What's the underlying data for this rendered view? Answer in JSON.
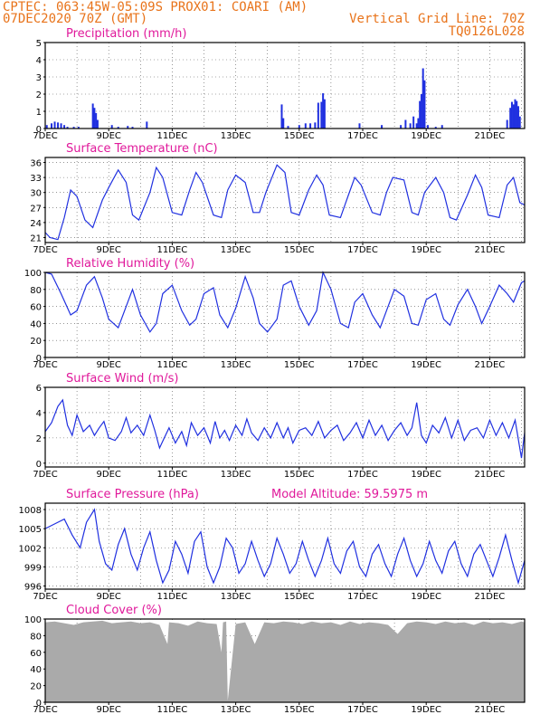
{
  "header": {
    "line1": "CPTEC:   063:45W-05:09S   PROX01: COARI (AM)",
    "line2_left": "07DEC2020 70Z (GMT)",
    "line2_right": "Vertical Grid Line: 70Z",
    "line3_right": "TQ0126L028"
  },
  "colors": {
    "header": "#e8731a",
    "title": "#e0199b",
    "series": "#2030e0",
    "cloud": "#aaaaaa"
  },
  "chart_data": [
    {
      "type": "bar",
      "title": "Precipitation (mm/h)",
      "ylim": [
        0,
        5
      ],
      "yticks": [
        0,
        1,
        2,
        3,
        4,
        5
      ],
      "x_range_days": [
        7,
        22.1
      ],
      "xtick_labels": [
        "7DEC",
        "9DEC",
        "11DEC",
        "13DEC",
        "15DEC",
        "17DEC",
        "19DEC",
        "21DEC"
      ],
      "x": [
        7.05,
        7.2,
        7.3,
        7.4,
        7.5,
        7.6,
        7.7,
        7.9,
        8.05,
        8.5,
        8.55,
        8.6,
        8.65,
        9.1,
        9.3,
        9.6,
        9.75,
        10.2,
        14.45,
        14.5,
        14.65,
        15.0,
        15.2,
        15.35,
        15.5,
        15.6,
        15.7,
        15.75,
        15.8,
        16.9,
        17.6,
        18.2,
        18.35,
        18.5,
        18.6,
        18.7,
        18.75,
        18.8,
        18.85,
        18.9,
        18.95,
        19.05,
        19.3,
        19.5,
        21.55,
        21.65,
        21.7,
        21.75,
        21.8,
        21.85,
        21.9,
        21.95
      ],
      "values": [
        0.2,
        0.3,
        0.4,
        0.35,
        0.3,
        0.2,
        0.1,
        0.1,
        0.1,
        1.45,
        1.2,
        0.9,
        0.5,
        0.2,
        0.1,
        0.15,
        0.1,
        0.4,
        1.4,
        0.6,
        0.15,
        0.2,
        0.3,
        0.3,
        0.35,
        1.5,
        1.55,
        2.05,
        1.7,
        0.3,
        0.2,
        0.2,
        0.5,
        0.3,
        0.7,
        0.3,
        0.6,
        1.6,
        2.0,
        3.5,
        2.8,
        0.2,
        0.1,
        0.2,
        0.5,
        1.2,
        1.55,
        1.4,
        1.7,
        1.6,
        1.3,
        0.7
      ]
    },
    {
      "type": "line",
      "title": "Surface Temperature (nC)",
      "ylim": [
        20,
        37
      ],
      "yticks": [
        21,
        24,
        27,
        30,
        33,
        36
      ],
      "x_range_days": [
        7,
        22.1
      ],
      "xtick_labels": [
        "7DEC",
        "9DEC",
        "11DEC",
        "13DEC",
        "15DEC",
        "17DEC",
        "19DEC",
        "21DEC"
      ],
      "x": [
        7.0,
        7.15,
        7.4,
        7.6,
        7.8,
        8.0,
        8.25,
        8.5,
        8.8,
        9.0,
        9.3,
        9.55,
        9.75,
        9.95,
        10.3,
        10.5,
        10.7,
        11.0,
        11.3,
        11.55,
        11.75,
        11.95,
        12.3,
        12.55,
        12.75,
        13.0,
        13.3,
        13.55,
        13.75,
        13.95,
        14.3,
        14.55,
        14.75,
        15.0,
        15.3,
        15.55,
        15.75,
        15.95,
        16.3,
        16.55,
        16.75,
        16.95,
        17.3,
        17.55,
        17.75,
        17.95,
        18.3,
        18.55,
        18.75,
        18.95,
        19.3,
        19.55,
        19.75,
        19.95,
        20.3,
        20.55,
        20.75,
        20.95,
        21.3,
        21.55,
        21.75,
        21.95,
        22.1
      ],
      "values": [
        22,
        21,
        20.6,
        25,
        30.5,
        29.2,
        24.5,
        23,
        28.5,
        31,
        34.5,
        32,
        25.5,
        24.5,
        30,
        35,
        33,
        26,
        25.5,
        30.5,
        34,
        32,
        25.5,
        25,
        30.5,
        33.5,
        32,
        26,
        26,
        30,
        35.5,
        34,
        26,
        25.5,
        30.5,
        33.5,
        31.5,
        25.5,
        25,
        29.5,
        33,
        31.5,
        26,
        25.5,
        30,
        33,
        32.5,
        26,
        25.5,
        30,
        33,
        30,
        25,
        24.5,
        29.5,
        33.5,
        31,
        25.5,
        25,
        31.5,
        33,
        28,
        27.5
      ]
    },
    {
      "type": "line",
      "title": "Relative Humidity (%)",
      "ylim": [
        0,
        100
      ],
      "yticks": [
        0,
        20,
        40,
        60,
        80,
        100
      ],
      "x_range_days": [
        7,
        22.1
      ],
      "xtick_labels": [
        "7DEC",
        "9DEC",
        "11DEC",
        "13DEC",
        "15DEC",
        "17DEC",
        "19DEC",
        "21DEC"
      ],
      "x": [
        7.0,
        7.2,
        7.5,
        7.8,
        8.0,
        8.3,
        8.55,
        8.8,
        9.0,
        9.3,
        9.55,
        9.75,
        10.0,
        10.3,
        10.5,
        10.7,
        11.0,
        11.3,
        11.55,
        11.75,
        12.0,
        12.3,
        12.5,
        12.75,
        13.0,
        13.3,
        13.55,
        13.75,
        14.0,
        14.3,
        14.5,
        14.75,
        15.0,
        15.3,
        15.55,
        15.75,
        16.0,
        16.3,
        16.55,
        16.75,
        17.0,
        17.3,
        17.55,
        17.75,
        18.0,
        18.3,
        18.55,
        18.75,
        19.0,
        19.3,
        19.55,
        19.75,
        20.0,
        20.3,
        20.55,
        20.75,
        21.0,
        21.3,
        21.55,
        21.75,
        22.0,
        22.1
      ],
      "values": [
        100,
        98,
        75,
        50,
        55,
        85,
        95,
        70,
        45,
        35,
        60,
        80,
        50,
        30,
        40,
        75,
        85,
        55,
        38,
        45,
        75,
        82,
        50,
        35,
        58,
        95,
        70,
        40,
        30,
        45,
        85,
        90,
        60,
        38,
        55,
        100,
        80,
        40,
        35,
        65,
        75,
        50,
        35,
        55,
        80,
        72,
        40,
        38,
        68,
        75,
        45,
        38,
        62,
        80,
        60,
        40,
        60,
        85,
        75,
        65,
        88,
        90
      ]
    },
    {
      "type": "line",
      "title": "Surface Wind (m/s)",
      "ylim": [
        -0.3,
        6
      ],
      "yticks": [
        0,
        2,
        4,
        6
      ],
      "x_range_days": [
        7,
        22.1
      ],
      "xtick_labels": [
        "7DEC",
        "9DEC",
        "11DEC",
        "13DEC",
        "15DEC",
        "17DEC",
        "19DEC",
        "21DEC"
      ],
      "x": [
        7.0,
        7.2,
        7.4,
        7.55,
        7.7,
        7.85,
        8.0,
        8.2,
        8.4,
        8.55,
        8.7,
        8.85,
        9.0,
        9.2,
        9.4,
        9.55,
        9.7,
        9.9,
        10.1,
        10.3,
        10.45,
        10.6,
        10.75,
        10.9,
        11.1,
        11.3,
        11.45,
        11.6,
        11.8,
        12.0,
        12.2,
        12.35,
        12.5,
        12.65,
        12.8,
        13.0,
        13.2,
        13.35,
        13.5,
        13.7,
        13.9,
        14.1,
        14.3,
        14.5,
        14.65,
        14.8,
        15.0,
        15.2,
        15.4,
        15.6,
        15.8,
        16.0,
        16.2,
        16.4,
        16.6,
        16.8,
        17.0,
        17.2,
        17.4,
        17.6,
        17.8,
        18.0,
        18.2,
        18.4,
        18.55,
        18.7,
        18.85,
        19.0,
        19.2,
        19.4,
        19.6,
        19.8,
        20.0,
        20.2,
        20.4,
        20.6,
        20.8,
        21.0,
        21.2,
        21.4,
        21.6,
        21.8,
        22.0,
        22.1
      ],
      "values": [
        2.5,
        3.2,
        4.5,
        5.0,
        3.0,
        2.2,
        3.8,
        2.5,
        3.0,
        2.2,
        2.8,
        3.3,
        2.0,
        1.8,
        2.5,
        3.6,
        2.4,
        3.0,
        2.2,
        3.8,
        2.6,
        1.2,
        2.0,
        2.8,
        1.6,
        2.5,
        1.4,
        3.2,
        2.2,
        2.8,
        1.6,
        3.3,
        2.0,
        2.6,
        1.8,
        3.0,
        2.2,
        3.5,
        2.4,
        1.8,
        2.8,
        2.0,
        3.2,
        2.0,
        2.8,
        1.6,
        2.6,
        2.8,
        2.2,
        3.3,
        2.0,
        2.6,
        3.0,
        1.8,
        2.4,
        3.2,
        2.0,
        3.4,
        2.2,
        3.0,
        1.8,
        2.6,
        3.2,
        2.2,
        2.8,
        4.8,
        2.2,
        1.6,
        3.0,
        2.4,
        3.6,
        2.0,
        3.4,
        1.8,
        2.6,
        2.8,
        2.0,
        3.4,
        2.2,
        3.2,
        2.0,
        3.4,
        0.4,
        2.4
      ]
    },
    {
      "type": "line",
      "title": "Surface Pressure (hPa)",
      "annotation": "Model Altitude: 59.5975 m",
      "ylim": [
        995.5,
        1009
      ],
      "yticks": [
        996,
        999,
        1002,
        1005,
        1008
      ],
      "x_range_days": [
        7,
        22.1
      ],
      "xtick_labels": [
        "7DEC",
        "9DEC",
        "11DEC",
        "13DEC",
        "15DEC",
        "17DEC",
        "19DEC",
        "21DEC"
      ],
      "x": [
        7.0,
        7.2,
        7.4,
        7.6,
        7.85,
        8.1,
        8.3,
        8.55,
        8.7,
        8.9,
        9.1,
        9.3,
        9.5,
        9.7,
        9.9,
        10.1,
        10.3,
        10.5,
        10.7,
        10.9,
        11.1,
        11.3,
        11.5,
        11.7,
        11.9,
        12.1,
        12.3,
        12.5,
        12.7,
        12.9,
        13.1,
        13.3,
        13.5,
        13.7,
        13.9,
        14.1,
        14.3,
        14.5,
        14.7,
        14.9,
        15.1,
        15.3,
        15.5,
        15.7,
        15.9,
        16.1,
        16.3,
        16.5,
        16.7,
        16.9,
        17.1,
        17.3,
        17.5,
        17.7,
        17.9,
        18.1,
        18.3,
        18.5,
        18.7,
        18.9,
        19.1,
        19.3,
        19.5,
        19.7,
        19.9,
        20.1,
        20.3,
        20.5,
        20.7,
        20.9,
        21.1,
        21.3,
        21.5,
        21.7,
        21.9,
        22.1
      ],
      "values": [
        1005,
        1005.5,
        1006,
        1006.5,
        1004,
        1002,
        1006,
        1008,
        1003,
        999.5,
        998.5,
        1002.5,
        1005,
        1001,
        998.5,
        1002,
        1004.5,
        1000,
        996.5,
        998.5,
        1003,
        1001,
        998,
        1003,
        1004.5,
        999,
        996.5,
        999,
        1003.5,
        1002,
        998,
        999.5,
        1003,
        1000,
        997.5,
        999.5,
        1003.5,
        1001,
        998,
        999.5,
        1003,
        1000,
        997.5,
        1000,
        1003.5,
        999.5,
        998,
        1001.5,
        1003,
        999,
        997.5,
        1001,
        1002.5,
        999.5,
        997.5,
        1001,
        1003.5,
        1000,
        997.5,
        999.5,
        1003,
        1000,
        998,
        1001.5,
        1003,
        999.5,
        997.5,
        1001,
        1002.5,
        1000,
        997.5,
        1000.5,
        1004,
        1000,
        996.5,
        1000
      ]
    },
    {
      "type": "area",
      "title": "Cloud Cover (%)",
      "ylim": [
        0,
        100
      ],
      "yticks": [
        0,
        20,
        40,
        60,
        80,
        100
      ],
      "x_range_days": [
        7,
        22.1
      ],
      "xtick_labels": [
        "7DEC",
        "9DEC",
        "11DEC",
        "13DEC",
        "15DEC",
        "17DEC",
        "19DEC",
        "21DEC"
      ],
      "x": [
        7.0,
        7.3,
        7.6,
        7.9,
        8.2,
        8.5,
        8.8,
        9.1,
        9.4,
        9.7,
        10.0,
        10.3,
        10.6,
        10.85,
        10.9,
        11.2,
        11.5,
        11.8,
        12.1,
        12.4,
        12.55,
        12.6,
        12.7,
        12.75,
        13.0,
        13.3,
        13.6,
        13.9,
        14.2,
        14.5,
        14.8,
        15.1,
        15.4,
        15.7,
        16.0,
        16.3,
        16.6,
        16.9,
        17.2,
        17.5,
        17.8,
        18.1,
        18.4,
        18.7,
        19.0,
        19.3,
        19.6,
        19.9,
        20.2,
        20.5,
        20.8,
        21.1,
        21.4,
        21.7,
        22.0,
        22.1
      ],
      "values": [
        96,
        97,
        95,
        93,
        96,
        97,
        98,
        95,
        96,
        97,
        95,
        96,
        93,
        70,
        96,
        95,
        92,
        97,
        95,
        94,
        60,
        96,
        97,
        2,
        94,
        96,
        70,
        96,
        95,
        97,
        96,
        94,
        97,
        95,
        96,
        93,
        97,
        94,
        96,
        95,
        93,
        82,
        95,
        97,
        96,
        94,
        97,
        95,
        96,
        93,
        97,
        95,
        96,
        94,
        97,
        96
      ]
    }
  ]
}
